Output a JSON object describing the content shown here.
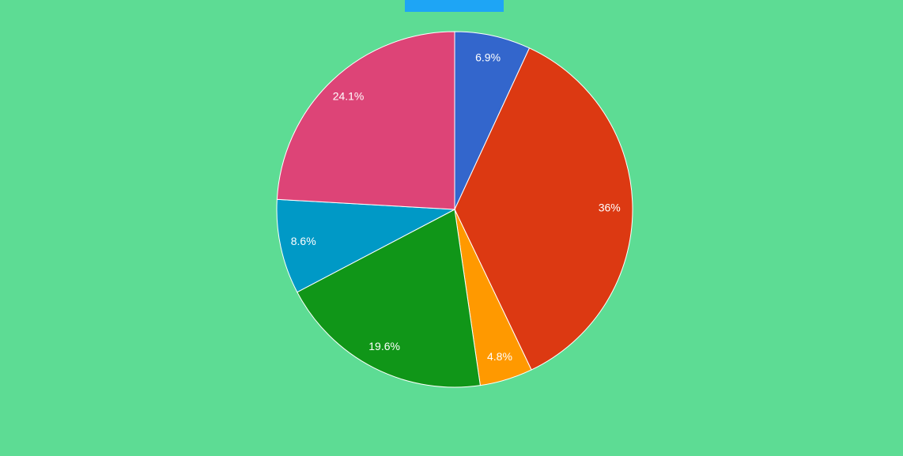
{
  "chart_data": {
    "type": "pie",
    "values": [
      6.9,
      36,
      4.8,
      19.6,
      8.6,
      24.1
    ],
    "value_labels": [
      "6.9%",
      "36%",
      "4.8%",
      "19.6%",
      "8.6%",
      "24.1%"
    ],
    "colors": [
      "#3366cc",
      "#dc3912",
      "#ff9900",
      "#109618",
      "#0099c6",
      "#dd4477"
    ]
  }
}
